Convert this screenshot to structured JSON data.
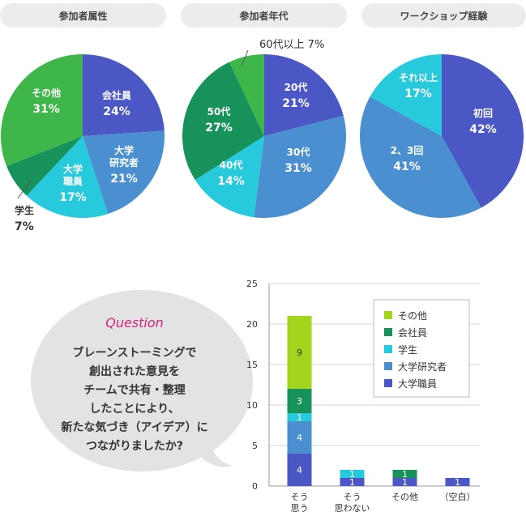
{
  "pie_titles": [
    "参加者属性",
    "参加者年代",
    "ワークショップ経験"
  ],
  "question": {
    "heading": "Question",
    "lines": [
      "ブレーンストーミングで",
      "創出された意見を",
      "チームで共有・整理",
      "したことにより、",
      "新たな気づき（アイデア）に",
      "つながりましたか?"
    ]
  },
  "chart_data": [
    {
      "type": "pie",
      "title": "参加者属性",
      "slices": [
        {
          "label": "会社員",
          "value": 24,
          "color": "#4a57c4"
        },
        {
          "label": "大学研究者",
          "value": 21,
          "color": "#4a8fd0"
        },
        {
          "label": "大学職員",
          "value": 17,
          "color": "#27c9dc"
        },
        {
          "label": "学生",
          "value": 7,
          "color": "#17925a"
        },
        {
          "label": "その他",
          "value": 31,
          "color": "#3fb64a"
        }
      ],
      "slice_labels": [
        {
          "lines": [
            "会社員"
          ],
          "pct": "24%"
        },
        {
          "lines": [
            "大学",
            "研究者"
          ],
          "pct": "21%"
        },
        {
          "lines": [
            "大学",
            "職員"
          ],
          "pct": "17%"
        },
        {
          "lines": [
            "学生"
          ],
          "pct": "7%"
        },
        {
          "lines": [
            "その他"
          ],
          "pct": "31%"
        }
      ]
    },
    {
      "type": "pie",
      "title": "参加者年代",
      "slices": [
        {
          "label": "20代",
          "value": 21,
          "color": "#4a57c4"
        },
        {
          "label": "30代",
          "value": 31,
          "color": "#4a8fd0"
        },
        {
          "label": "40代",
          "value": 14,
          "color": "#27c9dc"
        },
        {
          "label": "50代",
          "value": 27,
          "color": "#17925a"
        },
        {
          "label": "60代以上",
          "value": 7,
          "color": "#3fb64a"
        }
      ],
      "slice_labels": [
        {
          "lines": [
            "20代"
          ],
          "pct": "21%"
        },
        {
          "lines": [
            "30代"
          ],
          "pct": "31%"
        },
        {
          "lines": [
            "40代"
          ],
          "pct": "14%"
        },
        {
          "lines": [
            "50代"
          ],
          "pct": "27%"
        },
        {
          "lines": [
            "60代以上"
          ],
          "pct": "7%"
        }
      ]
    },
    {
      "type": "pie",
      "title": "ワークショップ経験",
      "slices": [
        {
          "label": "初回",
          "value": 42,
          "color": "#4a57c4"
        },
        {
          "label": "2、3回",
          "value": 41,
          "color": "#4a8fd0"
        },
        {
          "label": "それ以上",
          "value": 17,
          "color": "#27c9dc"
        }
      ],
      "slice_labels": [
        {
          "lines": [
            "初回"
          ],
          "pct": "42%"
        },
        {
          "lines": [
            "2、3回"
          ],
          "pct": "41%"
        },
        {
          "lines": [
            "それ以上"
          ],
          "pct": "17%"
        }
      ]
    },
    {
      "type": "bar",
      "stacked": true,
      "categories": [
        [
          "そう",
          "思う"
        ],
        [
          "そう",
          "思わない"
        ],
        [
          "その他"
        ],
        [
          "（空白）"
        ]
      ],
      "ylim": [
        0,
        25
      ],
      "yticks": [
        0,
        5,
        10,
        15,
        20,
        25
      ],
      "grid": true,
      "legend_position": "top-right",
      "series": [
        {
          "name": "大学職員",
          "color": "#4a57c4",
          "values": [
            4,
            1,
            1,
            1
          ]
        },
        {
          "name": "大学研究者",
          "color": "#4a8fd0",
          "values": [
            4,
            0,
            0,
            0
          ]
        },
        {
          "name": "学生",
          "color": "#27c9dc",
          "values": [
            1,
            1,
            0,
            0
          ]
        },
        {
          "name": "会社員",
          "color": "#17925a",
          "values": [
            3,
            0,
            1,
            0
          ]
        },
        {
          "name": "その他",
          "color": "#a3d51e",
          "values": [
            9,
            0,
            0,
            0
          ]
        }
      ],
      "data_labels": [
        [
          "4",
          "1",
          "1",
          "1"
        ],
        [
          "4",
          "",
          "",
          ""
        ],
        [
          "1",
          "1",
          "",
          ""
        ],
        [
          "3",
          "",
          "1",
          ""
        ],
        [
          "9",
          "",
          "",
          ""
        ]
      ],
      "legend_order": [
        "その他",
        "会社員",
        "学生",
        "大学研究者",
        "大学職員"
      ]
    }
  ]
}
